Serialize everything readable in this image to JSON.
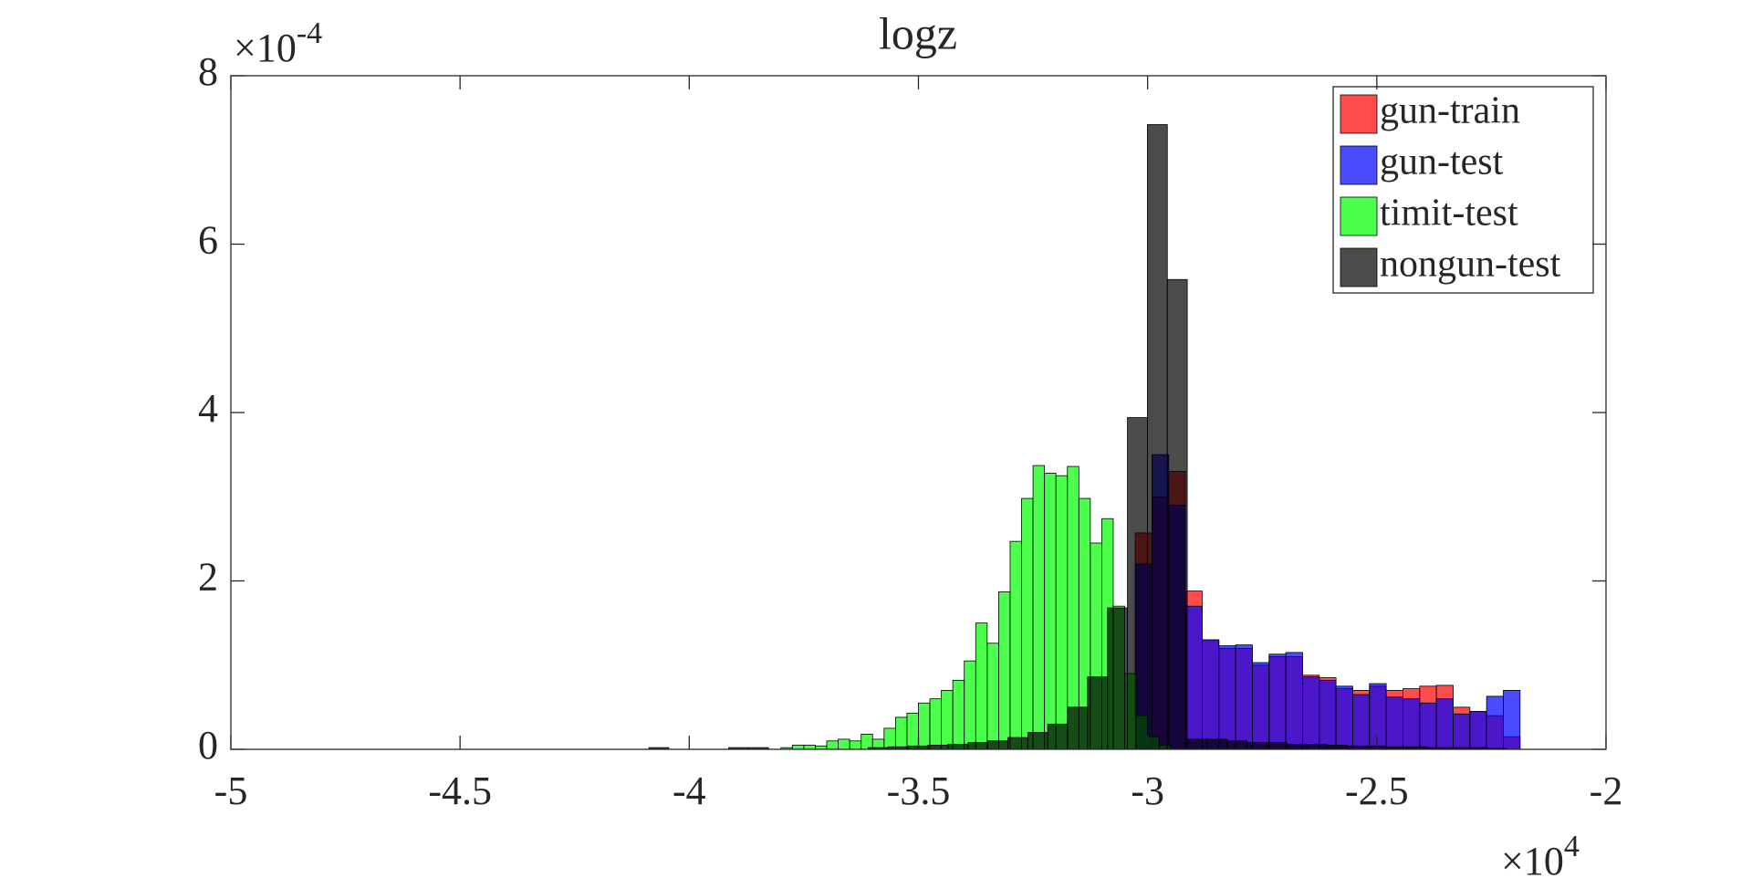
{
  "chart_data": {
    "type": "histogram",
    "title": "logz",
    "x_scale_label": {
      "base": "×10",
      "exponent": "4"
    },
    "y_scale_label": {
      "base": "×10",
      "exponent": "-4"
    },
    "xlim": [
      -5,
      -2
    ],
    "xticks": [
      -5,
      -4.5,
      -4,
      -3.5,
      -3,
      -2.5,
      -2
    ],
    "ylim": [
      0,
      8
    ],
    "yticks": [
      0,
      2,
      4,
      6,
      8
    ],
    "alpha": 0.7,
    "legend": "upper right",
    "series": [
      {
        "name": "gun-train",
        "color": "#ff0000",
        "bins": [
          -3.027,
          -2.9905,
          -2.954,
          -2.9175,
          -2.881,
          -2.8445,
          -2.808,
          -2.7715,
          -2.735,
          -2.6985,
          -2.662,
          -2.6255,
          -2.589,
          -2.5525,
          -2.516,
          -2.4795,
          -2.443,
          -2.4065,
          -2.37,
          -2.3335,
          -2.297,
          -2.2605,
          -2.224,
          -2.1875
        ],
        "values": [
          2.57,
          3.0,
          3.3,
          1.88,
          1.3,
          1.2,
          1.2,
          1.0,
          1.1,
          1.1,
          0.88,
          0.85,
          0.72,
          0.7,
          0.75,
          0.7,
          0.72,
          0.75,
          0.76,
          0.5,
          0.45,
          0.4,
          0.15
        ]
      },
      {
        "name": "gun-test",
        "color": "#0000ff",
        "bins": [
          -3.027,
          -2.9905,
          -2.954,
          -2.9175,
          -2.881,
          -2.8445,
          -2.808,
          -2.7715,
          -2.735,
          -2.6985,
          -2.662,
          -2.6255,
          -2.589,
          -2.5525,
          -2.516,
          -2.4795,
          -2.443,
          -2.4065,
          -2.37,
          -2.3335,
          -2.297,
          -2.2605,
          -2.224,
          -2.1875
        ],
        "values": [
          2.2,
          3.5,
          2.9,
          1.7,
          1.3,
          1.23,
          1.24,
          1.03,
          1.13,
          1.15,
          0.86,
          0.82,
          0.75,
          0.65,
          0.78,
          0.62,
          0.6,
          0.55,
          0.6,
          0.42,
          0.45,
          0.63,
          0.7
        ]
      },
      {
        "name": "timit-test",
        "color": "#00ff00",
        "bins": [
          -3.8,
          -3.775,
          -3.75,
          -3.725,
          -3.7,
          -3.675,
          -3.65,
          -3.625,
          -3.6,
          -3.575,
          -3.55,
          -3.525,
          -3.5,
          -3.475,
          -3.45,
          -3.425,
          -3.4,
          -3.375,
          -3.35,
          -3.325,
          -3.3,
          -3.275,
          -3.25,
          -3.225,
          -3.2,
          -3.175,
          -3.15,
          -3.125,
          -3.1,
          -3.075,
          -3.05,
          -3.025,
          -3.0,
          -2.975,
          -2.95
        ],
        "values": [
          0.02,
          0.05,
          0.05,
          0.04,
          0.1,
          0.12,
          0.1,
          0.18,
          0.12,
          0.25,
          0.38,
          0.43,
          0.55,
          0.6,
          0.7,
          0.82,
          1.05,
          1.5,
          1.26,
          1.87,
          2.47,
          2.98,
          3.37,
          3.28,
          3.25,
          3.36,
          2.98,
          2.45,
          2.74,
          1.7,
          0.9,
          0.4,
          0.15,
          0.05
        ]
      },
      {
        "name": "nongun-test",
        "color": "#000000",
        "bins": [
          -4.088,
          -4.0445,
          -4.001,
          -3.9575,
          -3.914,
          -3.8705,
          -3.827,
          -3.7835,
          -3.74,
          -3.6965,
          -3.653,
          -3.6095,
          -3.566,
          -3.5225,
          -3.479,
          -3.4355,
          -3.392,
          -3.3485,
          -3.305,
          -3.2615,
          -3.218,
          -3.1745,
          -3.131,
          -3.0875,
          -3.044,
          -3.0005,
          -2.957,
          -2.9135,
          -2.87,
          -2.8265,
          -2.783,
          -2.7395,
          -2.696,
          -2.6525,
          -2.609,
          -2.5655,
          -2.522,
          -2.4785,
          -2.435,
          -2.3915,
          -2.348,
          -2.3045,
          -2.261,
          -2.2175,
          -2.174
        ],
        "values": [
          0.02,
          0,
          0,
          0,
          0.02,
          0.02,
          0,
          0,
          0,
          0,
          0,
          0.02,
          0.03,
          0.04,
          0.05,
          0.06,
          0.08,
          0.1,
          0.14,
          0.2,
          0.3,
          0.5,
          0.86,
          1.68,
          3.94,
          7.42,
          5.58,
          0.12,
          0.12,
          0.1,
          0.08,
          0.08,
          0.06,
          0.06,
          0.05,
          0.04,
          0.04,
          0.03,
          0.03,
          0.02,
          0.02,
          0.02,
          0.01,
          0
        ]
      }
    ]
  }
}
